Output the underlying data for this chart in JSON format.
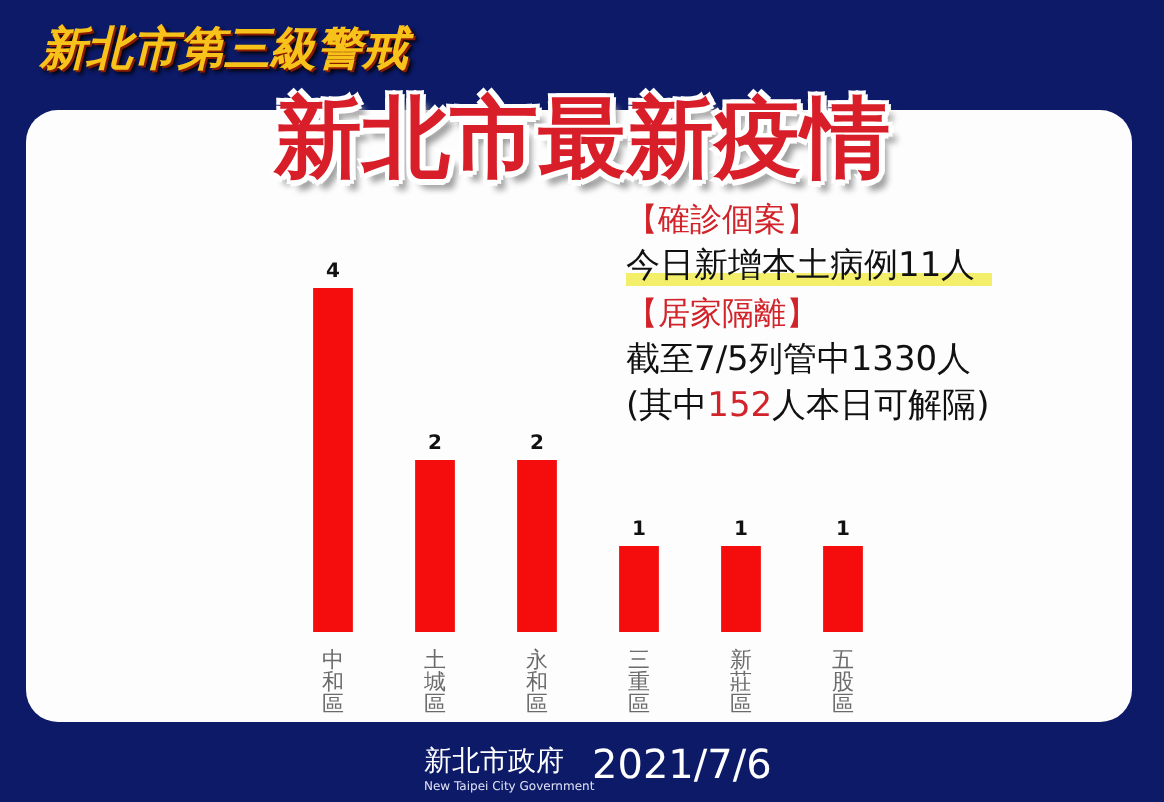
{
  "chart_data": {
    "type": "bar",
    "subtitle": "新北市第三級警戒",
    "title": "新北市最新疫情",
    "categories": [
      "中和區",
      "土城區",
      "永和區",
      "三重區",
      "新莊區",
      "五股區"
    ],
    "values": [
      4,
      2,
      2,
      1,
      1,
      1
    ],
    "color": "#f50d0d",
    "data_labels": true,
    "annotations": [
      "【確診個案】",
      "今日新增本土病例11人",
      "【居家隔離】",
      "截至7/5列管中1330人",
      "(其中152人本日可解隔)",
      "新北市政府",
      "New Taipei City Government",
      "2021/7/6"
    ]
  }
}
